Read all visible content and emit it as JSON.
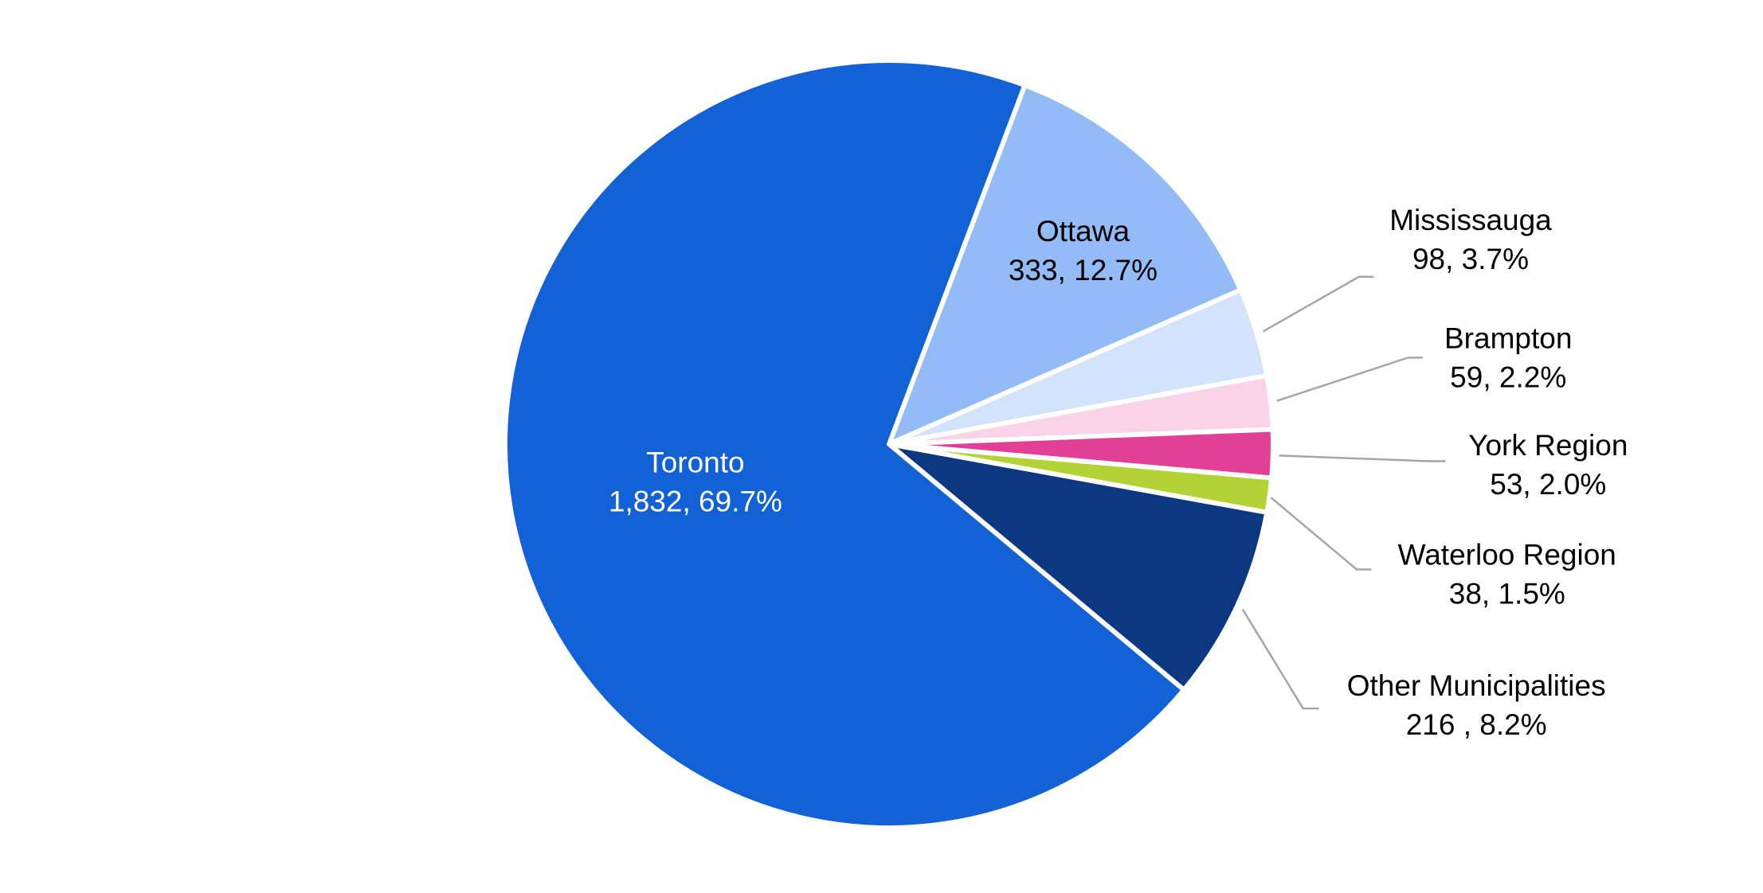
{
  "chart_data": {
    "type": "pie",
    "categories": [
      "Ottawa",
      "Mississauga",
      "Brampton",
      "York Region",
      "Waterloo Region",
      "Other Municipalities",
      "Toronto"
    ],
    "values": [
      333,
      98,
      59,
      53,
      38,
      216,
      1832
    ],
    "value_labels": [
      "333, 12.7%",
      "98, 3.7%",
      "59, 2.2%",
      "53, 2.0%",
      "38, 1.5%",
      "216 , 8.2%",
      "1,832, 69.7%"
    ],
    "colors": [
      "#93bbf6",
      "#d3e3fb",
      "#f9d3e6",
      "#e23f96",
      "#b3d334",
      "#0b3880",
      "#1262d6"
    ]
  }
}
